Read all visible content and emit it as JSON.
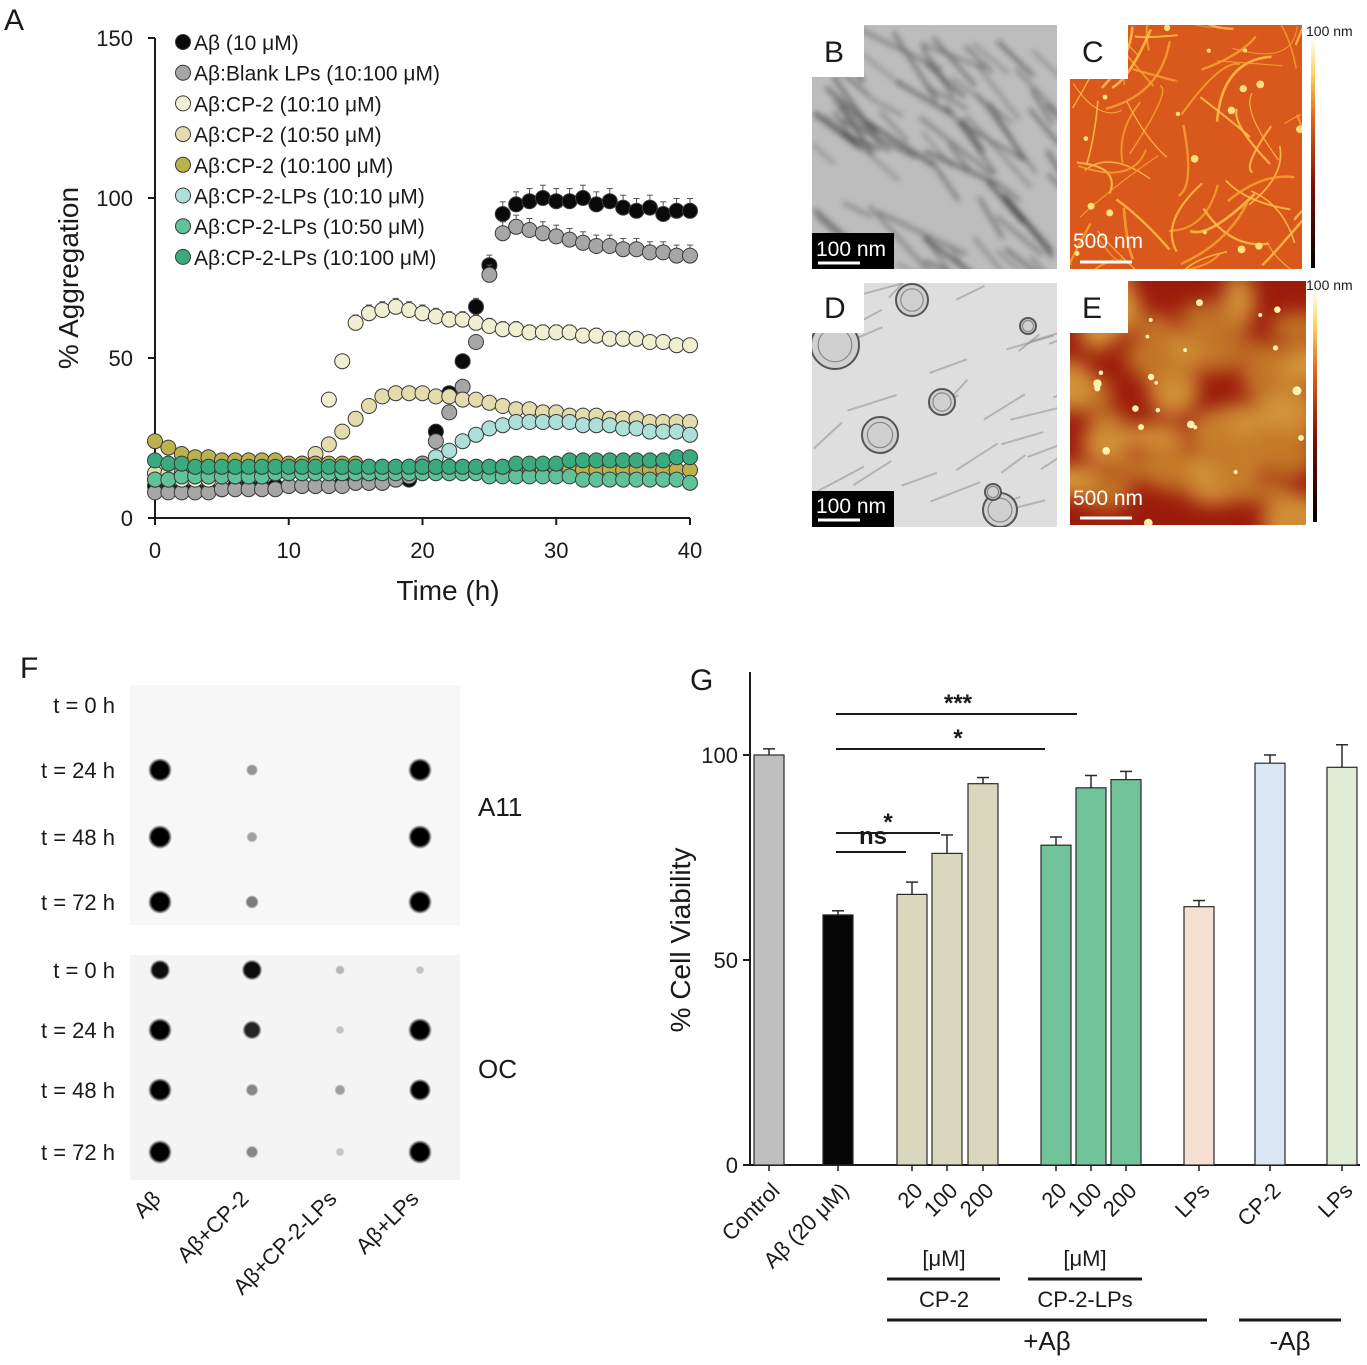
{
  "panels": {
    "A": {
      "letter": "A"
    },
    "B": {
      "letter": "B"
    },
    "C": {
      "letter": "C"
    },
    "D": {
      "letter": "D"
    },
    "E": {
      "letter": "E"
    },
    "F": {
      "letter": "F"
    },
    "G": {
      "letter": "G"
    }
  },
  "images": {
    "B": {
      "scale": "100 nm",
      "kind": "TEM"
    },
    "C": {
      "scale": "500 nm",
      "colorbar": "100 nm",
      "kind": "AFM"
    },
    "D": {
      "scale": "100 nm",
      "kind": "TEM"
    },
    "E": {
      "scale": "500 nm",
      "colorbar": "100 nm",
      "kind": "AFM"
    }
  },
  "dotblot": {
    "time_labels": [
      "t = 0 h",
      "t = 24 h",
      "t = 48 h",
      "t = 72 h"
    ],
    "blots": [
      {
        "antibody": "A11",
        "intensity": [
          [
            0,
            0,
            0,
            0
          ],
          [
            1,
            0.25,
            0,
            1
          ],
          [
            1,
            0.2,
            0,
            1
          ],
          [
            1,
            0.35,
            0,
            1
          ]
        ]
      },
      {
        "antibody": "OC",
        "intensity": [
          [
            0.8,
            0.8,
            0.1,
            0.05
          ],
          [
            1,
            0.7,
            0.05,
            1
          ],
          [
            1,
            0.3,
            0.2,
            0.9
          ],
          [
            1,
            0.3,
            0.05,
            1
          ]
        ]
      }
    ],
    "sample_labels": [
      "Aβ",
      "Aβ+CP-2",
      "Aβ+CP-2-LPs",
      "Aβ+LPs"
    ]
  },
  "chart_data": [
    {
      "type": "scatter",
      "panel": "A",
      "xlabel": "Time (h)",
      "ylabel": "% Aggregation",
      "xlim": [
        0,
        40
      ],
      "ylim": [
        0,
        150
      ],
      "xticks": [
        "0",
        "10",
        "20",
        "30",
        "40"
      ],
      "yticks": [
        "0",
        "50",
        "100",
        "150"
      ],
      "legend_position": "top-left",
      "x": [
        0,
        1,
        2,
        3,
        4,
        5,
        6,
        7,
        8,
        9,
        10,
        11,
        12,
        13,
        14,
        15,
        16,
        17,
        18,
        19,
        20,
        21,
        22,
        23,
        24,
        25,
        26,
        27,
        28,
        29,
        30,
        31,
        32,
        33,
        34,
        35,
        36,
        37,
        38,
        39,
        40
      ],
      "series": [
        {
          "name": "Aβ (10 μM)",
          "color": "#0a0a0a",
          "values": [
            10,
            9,
            9,
            9,
            9,
            9,
            10,
            10,
            10,
            10,
            10,
            10,
            10,
            10,
            11,
            11,
            11,
            11,
            12,
            12,
            17,
            27,
            39,
            49,
            66,
            79,
            95,
            98,
            99,
            100,
            99,
            99,
            100,
            98,
            99,
            97,
            96,
            97,
            95,
            96,
            96
          ]
        },
        {
          "name": "Aβ:Blank LPs (10:100 μM)",
          "color": "#a6a6a6",
          "values": [
            8,
            8,
            8,
            8,
            8,
            9,
            9,
            9,
            9,
            9,
            10,
            10,
            10,
            10,
            10,
            11,
            11,
            11,
            12,
            13,
            17,
            24,
            33,
            41,
            55,
            76,
            89,
            91,
            90,
            89,
            88,
            87,
            86,
            85,
            85,
            84,
            84,
            83,
            83,
            82,
            82
          ]
        },
        {
          "name": "Aβ:CP-2 (10:10 μM)",
          "color": "#f1efd2",
          "values": [
            12,
            12,
            12,
            12,
            12,
            13,
            13,
            13,
            13,
            14,
            14,
            15,
            18,
            37,
            49,
            61,
            64,
            65,
            66,
            65,
            64,
            63,
            62,
            62,
            61,
            60,
            59,
            59,
            58,
            58,
            58,
            58,
            57,
            57,
            56,
            56,
            56,
            55,
            55,
            54,
            54
          ]
        },
        {
          "name": "Aβ:CP-2 (10:50 μM)",
          "color": "#e3ddae",
          "values": [
            14,
            14,
            14,
            14,
            14,
            14,
            14,
            15,
            15,
            15,
            16,
            17,
            20,
            23,
            27,
            31,
            35,
            38,
            39,
            39,
            39,
            38,
            38,
            37,
            37,
            36,
            35,
            34,
            34,
            33,
            33,
            32,
            32,
            32,
            31,
            31,
            31,
            30,
            30,
            30,
            30
          ]
        },
        {
          "name": "Aβ:CP-2 (10:100 μM)",
          "color": "#bcb24d",
          "values": [
            24,
            22,
            20,
            19,
            19,
            18,
            18,
            18,
            18,
            18,
            17,
            17,
            17,
            17,
            17,
            17,
            16,
            16,
            16,
            16,
            16,
            16,
            16,
            16,
            16,
            16,
            16,
            16,
            16,
            15,
            15,
            15,
            15,
            15,
            15,
            15,
            15,
            15,
            15,
            15,
            15
          ]
        },
        {
          "name": "Aβ:CP-2-LPs (10:10 μM)",
          "color": "#aee0da",
          "values": [
            12,
            12,
            13,
            13,
            13,
            13,
            13,
            13,
            13,
            14,
            14,
            14,
            14,
            14,
            14,
            14,
            14,
            15,
            15,
            15,
            16,
            19,
            21,
            24,
            26,
            28,
            29,
            30,
            30,
            30,
            30,
            30,
            29,
            29,
            29,
            28,
            28,
            27,
            27,
            27,
            26
          ]
        },
        {
          "name": "Aβ:CP-2-LPs (10:50 μM)",
          "color": "#5fc29a",
          "values": [
            12,
            12,
            13,
            13,
            13,
            13,
            13,
            13,
            13,
            14,
            14,
            14,
            14,
            14,
            14,
            14,
            14,
            14,
            14,
            14,
            14,
            14,
            14,
            14,
            14,
            13,
            13,
            13,
            13,
            13,
            13,
            13,
            12,
            12,
            12,
            12,
            12,
            12,
            12,
            12,
            11
          ]
        },
        {
          "name": "Aβ:CP-2-LPs (10:100 μM)",
          "color": "#3aab7e",
          "values": [
            18,
            17,
            17,
            16,
            16,
            16,
            16,
            16,
            16,
            16,
            16,
            16,
            16,
            16,
            16,
            16,
            16,
            16,
            16,
            16,
            16,
            16,
            16,
            16,
            16,
            16,
            16,
            17,
            17,
            17,
            17,
            18,
            18,
            18,
            18,
            18,
            18,
            18,
            18,
            19,
            19
          ]
        }
      ]
    },
    {
      "type": "bar",
      "panel": "G",
      "ylabel": "% Cell Viability",
      "ylim": [
        0,
        125
      ],
      "yticks": [
        "0",
        "50",
        "100"
      ],
      "categories": [
        "Control",
        "Aβ (20 μM)",
        "20",
        "100",
        "200",
        "20",
        "100",
        "200",
        "LPs",
        "CP-2",
        "LPs"
      ],
      "values": [
        100,
        61,
        66,
        76,
        93,
        78,
        92,
        94,
        63,
        98,
        97
      ],
      "errors": [
        1.5,
        1,
        3,
        4.5,
        1.5,
        2,
        3,
        2,
        1.5,
        2,
        5.5
      ],
      "colors": [
        "#bfbfbf",
        "#050505",
        "#d9d8bf",
        "#d9d8bf",
        "#d9d8bf",
        "#71c49a",
        "#71c49a",
        "#71c49a",
        "#f6e0d2",
        "#dbe8f4",
        "#e1ecd4"
      ],
      "significance": [
        {
          "label": "***",
          "from": 1,
          "to": 6
        },
        {
          "label": "*",
          "from": 1,
          "to": 5
        },
        {
          "label": "*",
          "from": 1,
          "to": 3
        },
        {
          "label": "ns",
          "from": 1,
          "to": 2
        }
      ],
      "groups": [
        {
          "unit": "[μM]",
          "name": "CP-2"
        },
        {
          "unit": "[μM]",
          "name": "CP-2-LPs"
        }
      ],
      "supergroups": [
        "+Aβ",
        "-Aβ"
      ]
    }
  ]
}
